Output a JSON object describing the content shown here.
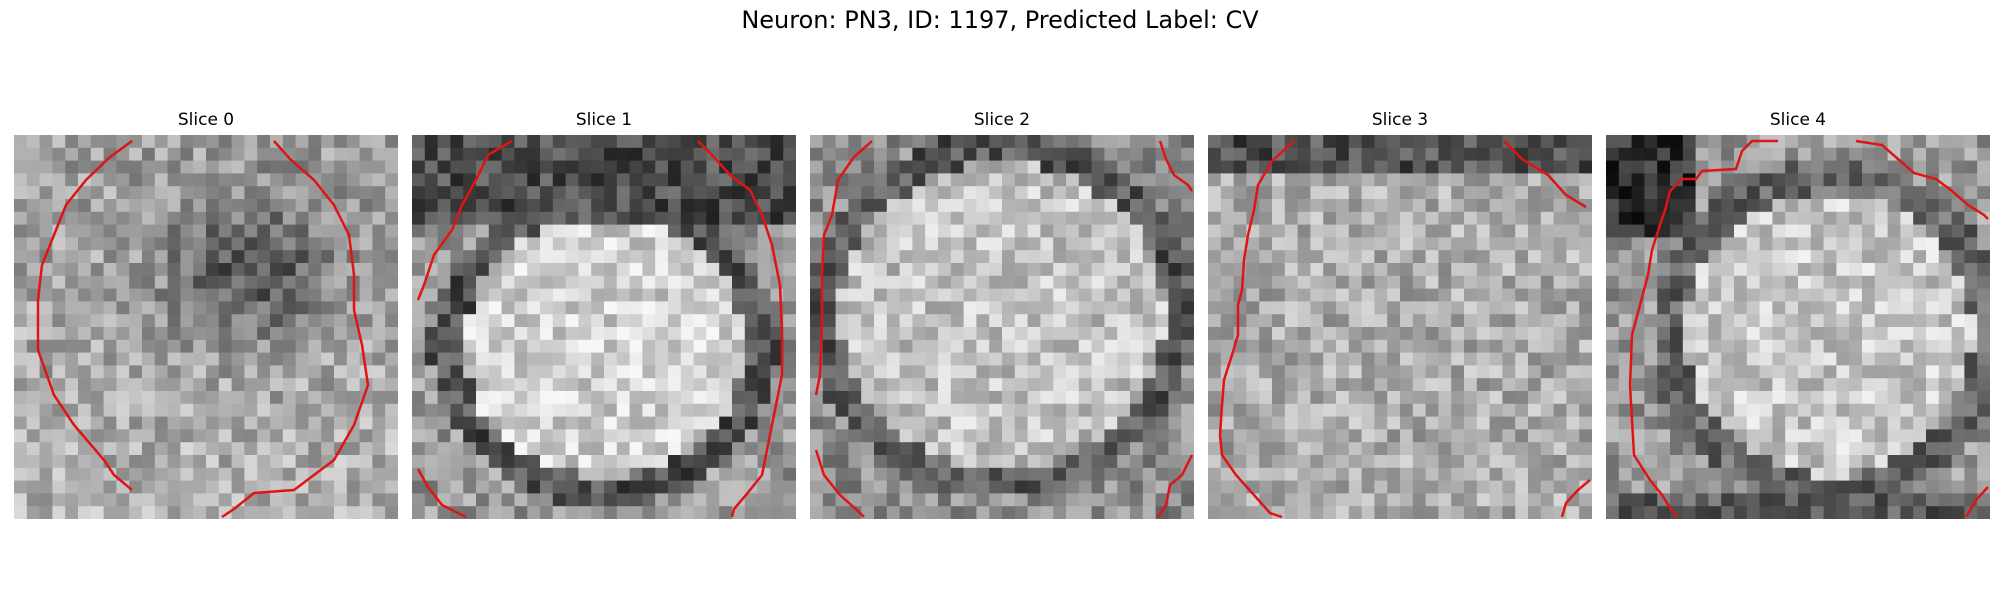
{
  "figure": {
    "title": "Neuron: PN3, ID: 1197, Predicted Label: CV"
  },
  "slices": [
    {
      "title": "Slice 0"
    },
    {
      "title": "Slice 1"
    },
    {
      "title": "Slice 2"
    },
    {
      "title": "Slice 3"
    },
    {
      "title": "Slice 4"
    }
  ],
  "colors": {
    "contour": "#e01414"
  }
}
